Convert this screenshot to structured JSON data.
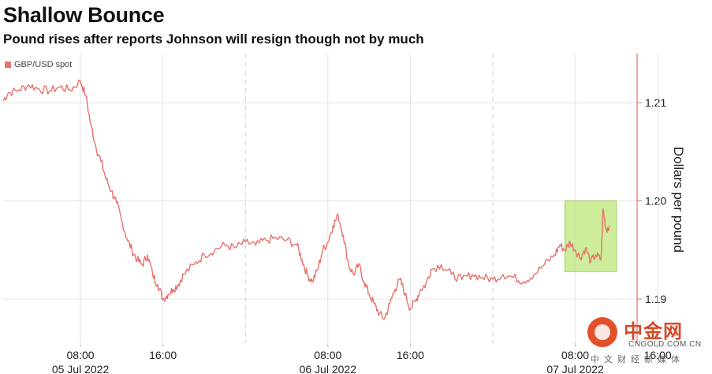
{
  "header": {
    "title": "Shallow Bounce",
    "subtitle": "Pound rises after reports Johnson will resign though not by much"
  },
  "watermark": {
    "brand": "中金网",
    "site": "CNGOLD.COM.CN",
    "tagline": "中文财经新媒体"
  },
  "colors": {
    "series": "#e8716c",
    "highlight_fill": "#c6ea8a",
    "highlight_border": "#8cc63f",
    "axis": "#e8716c",
    "grid": "#e4e4e4"
  },
  "chart_data": {
    "type": "line",
    "title": "Shallow Bounce",
    "subtitle": "Pound rises after reports Johnson will resign though not by much",
    "ylabel": "Dollars per pound",
    "legend": {
      "entries": [
        "GBP/USD spot"
      ],
      "placement": "top-left"
    },
    "x_unit": "hours since 00:00 5 Jul 2022",
    "xlim": [
      0.5,
      62
    ],
    "ylim": [
      1.1855,
      1.215
    ],
    "y_ticks": [
      1.19,
      1.2,
      1.21
    ],
    "y_tick_labels": [
      "1.19",
      "1.20",
      "1.21"
    ],
    "grid": true,
    "x_ticks": [
      {
        "x": 8,
        "label": "08:00",
        "sublabel": "05 Jul 2022"
      },
      {
        "x": 16,
        "label": "16:00",
        "sublabel": ""
      },
      {
        "x": 32,
        "label": "08:00",
        "sublabel": "06 Jul 2022"
      },
      {
        "x": 40,
        "label": "16:00",
        "sublabel": ""
      },
      {
        "x": 56,
        "label": "08:00",
        "sublabel": "07 Jul 2022"
      },
      {
        "x": 64,
        "label": "16:00",
        "sublabel": ""
      }
    ],
    "day_separators": [
      24,
      48
    ],
    "series": [
      {
        "name": "GBP/USD spot",
        "x": [
          0.5,
          1,
          2,
          3,
          4,
          5,
          6,
          7,
          8,
          8.5,
          9,
          9.5,
          10,
          10.5,
          11,
          11.5,
          12,
          12.5,
          13,
          13.5,
          14,
          14.5,
          15,
          15.5,
          16,
          16.5,
          17,
          17.5,
          18,
          19,
          20,
          21,
          22,
          23,
          24,
          25,
          26,
          27,
          28,
          29,
          29.5,
          30,
          30.5,
          31,
          31.5,
          32,
          32.5,
          33,
          33.5,
          34,
          34.5,
          35,
          35.5,
          36,
          36.5,
          37,
          37.5,
          38,
          38.5,
          39,
          39.5,
          40,
          40.5,
          41,
          41.5,
          42,
          43,
          44,
          45,
          46,
          47,
          48,
          49,
          50,
          51,
          52,
          53,
          54,
          54.5,
          55,
          55.5,
          56,
          56.5,
          57,
          57.5,
          58,
          58.5,
          58.7,
          59,
          59.3
        ],
        "values": [
          1.2102,
          1.211,
          1.2113,
          1.2118,
          1.2114,
          1.2112,
          1.2116,
          1.2113,
          1.2122,
          1.2108,
          1.2078,
          1.2055,
          1.204,
          1.2022,
          1.201,
          1.1998,
          1.198,
          1.1962,
          1.195,
          1.194,
          1.1935,
          1.1945,
          1.1925,
          1.1915,
          1.19,
          1.1905,
          1.191,
          1.1915,
          1.1925,
          1.1935,
          1.1945,
          1.195,
          1.1955,
          1.1952,
          1.1958,
          1.1955,
          1.196,
          1.1962,
          1.196,
          1.1955,
          1.194,
          1.1925,
          1.1918,
          1.193,
          1.195,
          1.1958,
          1.1975,
          1.1985,
          1.1965,
          1.1935,
          1.1925,
          1.1935,
          1.1918,
          1.1905,
          1.1895,
          1.1885,
          1.188,
          1.1895,
          1.191,
          1.192,
          1.1905,
          1.189,
          1.1898,
          1.191,
          1.1915,
          1.193,
          1.1935,
          1.1925,
          1.192,
          1.1925,
          1.1922,
          1.192,
          1.1925,
          1.1922,
          1.1918,
          1.1925,
          1.1935,
          1.1945,
          1.1955,
          1.195,
          1.1958,
          1.195,
          1.1942,
          1.1952,
          1.1938,
          1.1945,
          1.194,
          1.1992,
          1.197,
          1.1975
        ]
      }
    ],
    "highlight": {
      "x": [
        55,
        60
      ],
      "y": [
        1.1928,
        1.2
      ]
    }
  }
}
